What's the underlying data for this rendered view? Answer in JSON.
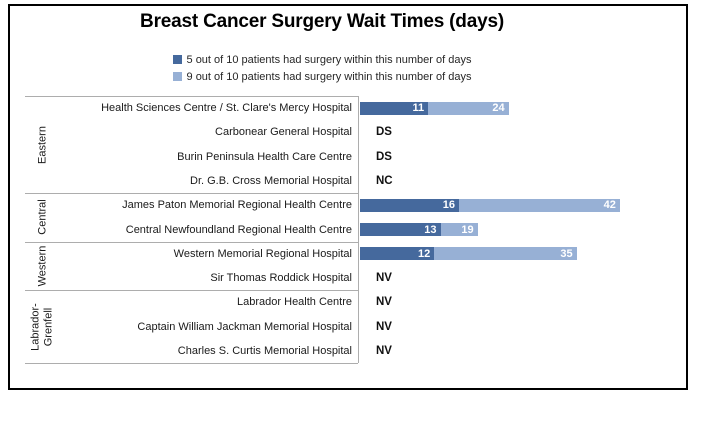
{
  "title": "Breast Cancer Surgery Wait Times (days)",
  "legend": {
    "items": [
      {
        "label": "5 out of 10 patients had surgery within this number of days",
        "color": "#45699d"
      },
      {
        "label": "9 out of 10 patients had surgery within this number of days",
        "color": "#97b0d5"
      }
    ]
  },
  "chart_data": {
    "type": "bar",
    "orientation": "horizontal",
    "title": "Breast Cancer Surgery Wait Times (days)",
    "xlabel": "",
    "ylabel": "",
    "xlim": [
      0,
      53
    ],
    "grid": false,
    "legend_position": "top-center",
    "series": [
      {
        "name": "5 out of 10 patients had surgery within this number of days",
        "color": "#45699d"
      },
      {
        "name": "9 out of 10 patients had surgery within this number of days",
        "color": "#97b0d5"
      }
    ],
    "groups": [
      {
        "region": "Eastern",
        "rows": [
          {
            "hospital": "Health Sciences Centre / St. Clare's Mercy Hospital",
            "p50": 11,
            "p90": 24
          },
          {
            "hospital": "Carbonear General Hospital",
            "code": "DS"
          },
          {
            "hospital": "Burin Peninsula Health Care Centre",
            "code": "DS"
          },
          {
            "hospital": "Dr. G.B. Cross Memorial Hospital",
            "code": "NC"
          }
        ]
      },
      {
        "region": "Central",
        "rows": [
          {
            "hospital": "James Paton Memorial Regional Health Centre",
            "p50": 16,
            "p90": 42
          },
          {
            "hospital": "Central Newfoundland Regional Health Centre",
            "p50": 13,
            "p90": 19
          }
        ]
      },
      {
        "region": "Western",
        "rows": [
          {
            "hospital": "Western Memorial Regional Hospital",
            "p50": 12,
            "p90": 35
          },
          {
            "hospital": "Sir Thomas Roddick Hospital",
            "code": "NV"
          }
        ]
      },
      {
        "region": "Labrador-Grenfell",
        "rows": [
          {
            "hospital": "Labrador Health Centre",
            "code": "NV"
          },
          {
            "hospital": "Captain William Jackman Memorial Hospital",
            "code": "NV"
          },
          {
            "hospital": "Charles S. Curtis Memorial Hospital",
            "code": "NV"
          }
        ]
      }
    ]
  },
  "colors": {
    "series_dark": "#45699d",
    "series_light": "#97b0d5",
    "table_line": "#adadad",
    "border": "#000000",
    "bar_value_text": "#ffffff",
    "label_text": "#1a1a1a"
  }
}
